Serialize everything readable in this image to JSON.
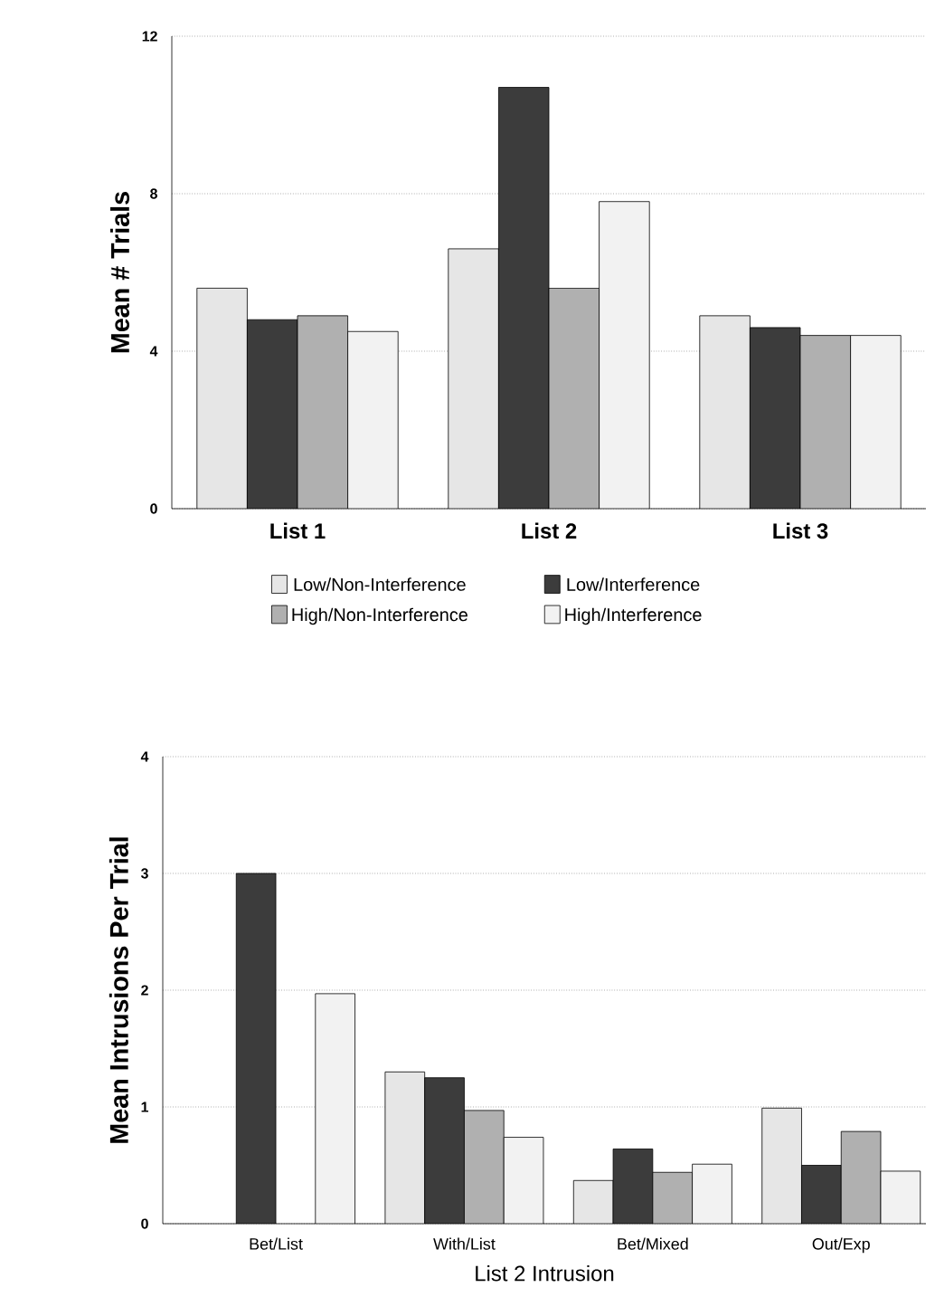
{
  "chart_data": [
    {
      "type": "bar",
      "ylabel": "Mean # Trials",
      "categories": [
        "List  1",
        "List  2",
        "List  3"
      ],
      "series": [
        {
          "name": "Low/Non-Interference",
          "color": "#e6e6e6",
          "values": [
            5.6,
            6.6,
            4.9
          ]
        },
        {
          "name": "Low/Interference",
          "color": "#3c3c3c",
          "values": [
            4.8,
            10.7,
            4.6
          ]
        },
        {
          "name": "High/Non-Interference",
          "color": "#b0b0b0",
          "values": [
            4.9,
            5.6,
            4.4
          ]
        },
        {
          "name": "High/Interference",
          "color": "#f2f2f2",
          "values": [
            4.5,
            7.8,
            4.4
          ]
        }
      ],
      "ylim": [
        0,
        12
      ],
      "yticks": [
        0,
        4,
        8,
        12
      ],
      "grid": "y",
      "legend": "bottom"
    },
    {
      "type": "bar",
      "xlabel": "List  2  Intrusion",
      "ylabel": "Mean Intrusions Per Trial",
      "categories": [
        "Bet/List",
        "With/List",
        "Bet/Mixed",
        "Out/Exp"
      ],
      "series": [
        {
          "color": "#e6e6e6",
          "values": [
            null,
            1.3,
            0.37,
            0.99
          ]
        },
        {
          "color": "#3c3c3c",
          "values": [
            3.0,
            1.25,
            0.64,
            0.5
          ]
        },
        {
          "color": "#b0b0b0",
          "values": [
            null,
            0.97,
            0.44,
            0.79
          ]
        },
        {
          "color": "#f2f2f2",
          "values": [
            1.97,
            0.74,
            0.51,
            0.45
          ]
        }
      ],
      "ylim": [
        0,
        4
      ],
      "yticks": [
        0,
        1,
        2,
        3,
        4
      ],
      "grid": "y"
    }
  ]
}
